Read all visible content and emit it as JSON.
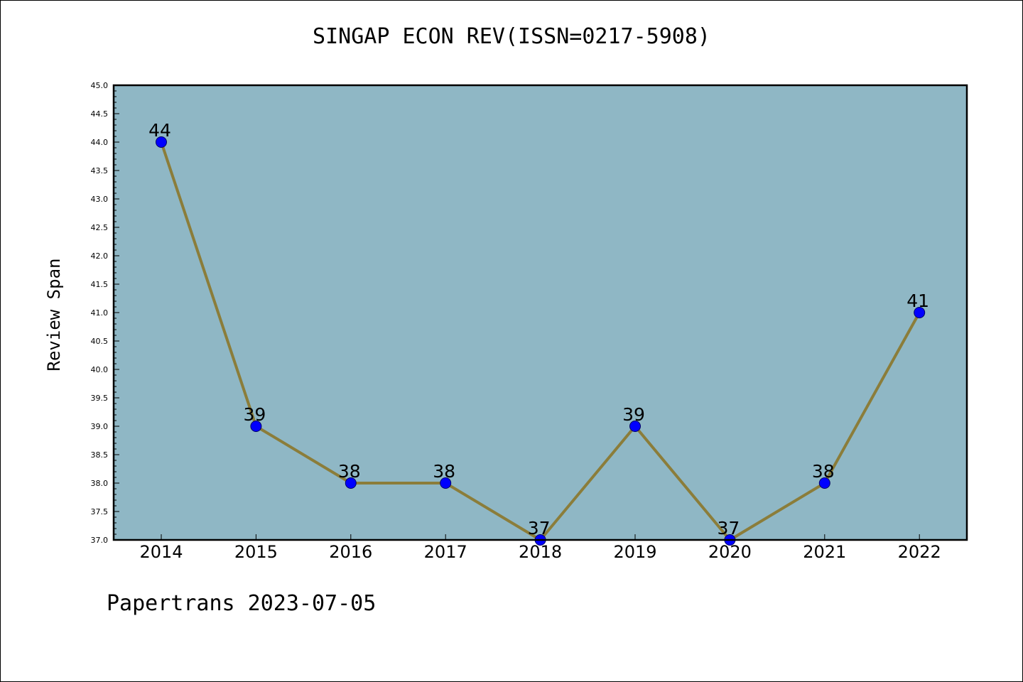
{
  "title": "SINGAP ECON REV(ISSN=0217-5908)",
  "footer": "Papertrans 2023-07-05",
  "colors": {
    "plot_background": "#8fb7c5",
    "line": "#8b7d3a",
    "marker": "#0000ff",
    "marker_edge": "#000066"
  },
  "chart_data": {
    "type": "line",
    "title": "SINGAP ECON REV(ISSN=0217-5908)",
    "xlabel": "",
    "ylabel": "Review Span",
    "categories": [
      "2014",
      "2015",
      "2016",
      "2017",
      "2018",
      "2019",
      "2020",
      "2021",
      "2022"
    ],
    "series": [
      {
        "values": [
          44,
          39,
          38,
          38,
          37,
          39,
          37,
          38,
          41
        ]
      }
    ],
    "data_labels": [
      "44",
      "39",
      "38",
      "38",
      "37",
      "39",
      "37",
      "38",
      "41"
    ],
    "ylim": [
      37.0,
      45.0
    ],
    "yticks": [
      "37.0",
      "37.5",
      "38.0",
      "38.5",
      "39.0",
      "39.5",
      "40.0",
      "40.5",
      "41.0",
      "41.5",
      "42.0",
      "42.5",
      "43.0",
      "43.5",
      "44.0",
      "44.5",
      "45.0"
    ],
    "grid": false,
    "legend": "none"
  }
}
